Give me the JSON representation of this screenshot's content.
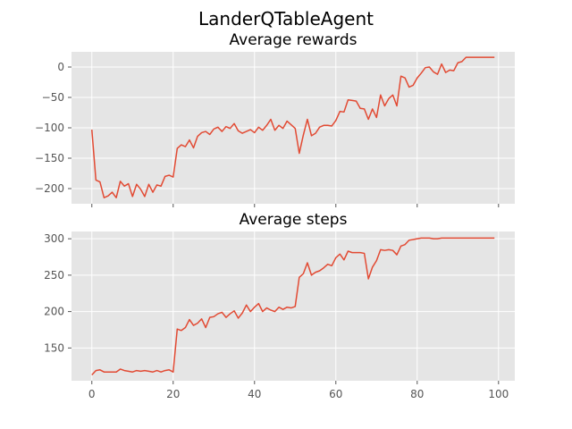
{
  "figure": {
    "suptitle": "LanderQTableAgent"
  },
  "chart_data": [
    {
      "type": "line",
      "title": "Average rewards",
      "xlabel": "",
      "ylabel": "",
      "xlim": [
        -5,
        104
      ],
      "ylim": [
        -225,
        25
      ],
      "xticks": [
        0,
        20,
        40,
        60,
        80,
        100
      ],
      "xtick_labels_visible": false,
      "yticks": [
        0,
        -50,
        -100,
        -150,
        -200
      ],
      "grid": true,
      "background": "#e5e5e5",
      "line_color": "#e24a33",
      "series": [
        {
          "x": [
            0,
            1,
            2,
            3,
            4,
            5,
            6,
            7,
            8,
            9,
            10,
            11,
            12,
            13,
            14,
            15,
            16,
            17,
            18,
            19,
            20,
            21,
            22,
            23,
            24,
            25,
            26,
            27,
            28,
            29,
            30,
            31,
            32,
            33,
            34,
            35,
            36,
            37,
            38,
            39,
            40,
            41,
            42,
            43,
            44,
            45,
            46,
            47,
            48,
            49,
            50,
            51,
            52,
            53,
            54,
            55,
            56,
            57,
            58,
            59,
            60,
            61,
            62,
            63,
            64,
            65,
            66,
            67,
            68,
            69,
            70,
            71,
            72,
            73,
            74,
            75,
            76,
            77,
            78,
            79,
            80,
            81,
            82,
            83,
            84,
            85,
            86,
            87,
            88,
            89,
            90,
            91,
            92,
            93,
            94,
            95,
            96,
            97,
            98,
            99
          ],
          "y": [
            -103,
            -186,
            -189,
            -215,
            -212,
            -206,
            -215,
            -188,
            -196,
            -192,
            -213,
            -193,
            -201,
            -213,
            -193,
            -206,
            -194,
            -196,
            -180,
            -178,
            -181,
            -134,
            -128,
            -131,
            -120,
            -133,
            -114,
            -108,
            -106,
            -111,
            -102,
            -99,
            -106,
            -98,
            -101,
            -93,
            -105,
            -109,
            -106,
            -103,
            -108,
            -99,
            -104,
            -96,
            -86,
            -104,
            -96,
            -101,
            -89,
            -95,
            -101,
            -142,
            -112,
            -86,
            -113,
            -109,
            -99,
            -96,
            -96,
            -97,
            -88,
            -73,
            -74,
            -54,
            -55,
            -56,
            -68,
            -69,
            -86,
            -69,
            -83,
            -46,
            -64,
            -52,
            -46,
            -64,
            -15,
            -18,
            -33,
            -30,
            -18,
            -10,
            -1,
            0,
            -8,
            -12,
            5,
            -9,
            -5,
            -6,
            7,
            9,
            16,
            16,
            16,
            16,
            16,
            16,
            16,
            16
          ]
        }
      ]
    },
    {
      "type": "line",
      "title": "Average steps",
      "xlabel": "",
      "ylabel": "",
      "xlim": [
        -5,
        104
      ],
      "ylim": [
        105,
        310
      ],
      "xticks": [
        0,
        20,
        40,
        60,
        80,
        100
      ],
      "xtick_labels_visible": true,
      "yticks": [
        150,
        200,
        250,
        300
      ],
      "grid": true,
      "background": "#e5e5e5",
      "line_color": "#e24a33",
      "series": [
        {
          "x": [
            0,
            1,
            2,
            3,
            4,
            5,
            6,
            7,
            8,
            9,
            10,
            11,
            12,
            13,
            14,
            15,
            16,
            17,
            18,
            19,
            20,
            21,
            22,
            23,
            24,
            25,
            26,
            27,
            28,
            29,
            30,
            31,
            32,
            33,
            34,
            35,
            36,
            37,
            38,
            39,
            40,
            41,
            42,
            43,
            44,
            45,
            46,
            47,
            48,
            49,
            50,
            51,
            52,
            53,
            54,
            55,
            56,
            57,
            58,
            59,
            60,
            61,
            62,
            63,
            64,
            65,
            66,
            67,
            68,
            69,
            70,
            71,
            72,
            73,
            74,
            75,
            76,
            77,
            78,
            79,
            80,
            81,
            82,
            83,
            84,
            85,
            86,
            87,
            88,
            89,
            90,
            91,
            92,
            93,
            94,
            95,
            96,
            97,
            98,
            99
          ],
          "y": [
            113,
            119,
            120,
            117,
            117,
            117,
            117,
            121,
            119,
            118,
            117,
            119,
            118,
            119,
            118,
            117,
            119,
            117,
            119,
            120,
            117,
            176,
            174,
            178,
            189,
            181,
            184,
            190,
            178,
            192,
            193,
            197,
            199,
            192,
            197,
            201,
            191,
            198,
            209,
            200,
            206,
            211,
            200,
            205,
            202,
            200,
            206,
            203,
            206,
            205,
            207,
            247,
            252,
            267,
            250,
            254,
            256,
            260,
            265,
            263,
            274,
            279,
            271,
            283,
            281,
            281,
            281,
            280,
            245,
            261,
            270,
            285,
            284,
            285,
            284,
            278,
            290,
            292,
            298,
            299,
            300,
            301,
            301,
            301,
            300,
            300,
            301,
            301,
            301,
            301,
            301,
            301,
            301,
            301,
            301,
            301,
            301,
            301,
            301,
            301
          ]
        }
      ]
    }
  ]
}
